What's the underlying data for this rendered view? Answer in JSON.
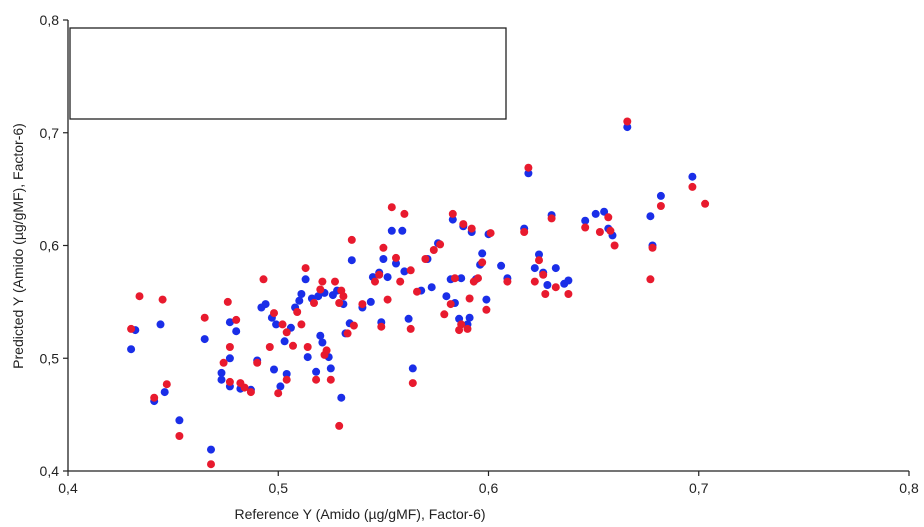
{
  "chart_data": {
    "type": "scatter",
    "xlabel": "Reference Y (Amido (µg/gMF), Factor-6)",
    "ylabel": "Predicted Y (Amido (µg/gMF), Factor-6)",
    "xlim": [
      0.4,
      0.8
    ],
    "ylim": [
      0.4,
      0.8
    ],
    "grid": false,
    "legend": "top-left (empty box)",
    "xticks": [
      "0,4",
      "0,5",
      "0,6",
      "0,7",
      "0,8"
    ],
    "yticks": [
      "0,4",
      "0,5",
      "0,6",
      "0,7",
      "0,8"
    ],
    "xtick_values": [
      0.4,
      0.5,
      0.6,
      0.7,
      0.8
    ],
    "ytick_values": [
      0.4,
      0.5,
      0.6,
      0.7,
      0.8
    ],
    "series": [
      {
        "color": "#1a2ee8",
        "points": [
          [
            0.43,
            0.508
          ],
          [
            0.432,
            0.525
          ],
          [
            0.441,
            0.462
          ],
          [
            0.444,
            0.53
          ],
          [
            0.446,
            0.47
          ],
          [
            0.453,
            0.445
          ],
          [
            0.465,
            0.517
          ],
          [
            0.468,
            0.419
          ],
          [
            0.473,
            0.481
          ],
          [
            0.473,
            0.487
          ],
          [
            0.477,
            0.5
          ],
          [
            0.477,
            0.532
          ],
          [
            0.477,
            0.475
          ],
          [
            0.48,
            0.524
          ],
          [
            0.482,
            0.473
          ],
          [
            0.487,
            0.472
          ],
          [
            0.49,
            0.498
          ],
          [
            0.492,
            0.545
          ],
          [
            0.494,
            0.548
          ],
          [
            0.497,
            0.536
          ],
          [
            0.498,
            0.49
          ],
          [
            0.499,
            0.53
          ],
          [
            0.501,
            0.475
          ],
          [
            0.503,
            0.515
          ],
          [
            0.504,
            0.486
          ],
          [
            0.506,
            0.527
          ],
          [
            0.508,
            0.545
          ],
          [
            0.51,
            0.551
          ],
          [
            0.511,
            0.557
          ],
          [
            0.513,
            0.57
          ],
          [
            0.514,
            0.501
          ],
          [
            0.516,
            0.553
          ],
          [
            0.518,
            0.488
          ],
          [
            0.519,
            0.555
          ],
          [
            0.52,
            0.52
          ],
          [
            0.521,
            0.514
          ],
          [
            0.522,
            0.558
          ],
          [
            0.524,
            0.501
          ],
          [
            0.525,
            0.491
          ],
          [
            0.526,
            0.556
          ],
          [
            0.528,
            0.56
          ],
          [
            0.53,
            0.465
          ],
          [
            0.531,
            0.548
          ],
          [
            0.532,
            0.522
          ],
          [
            0.534,
            0.531
          ],
          [
            0.535,
            0.587
          ],
          [
            0.54,
            0.545
          ],
          [
            0.544,
            0.55
          ],
          [
            0.545,
            0.572
          ],
          [
            0.548,
            0.576
          ],
          [
            0.549,
            0.532
          ],
          [
            0.55,
            0.588
          ],
          [
            0.552,
            0.572
          ],
          [
            0.554,
            0.613
          ],
          [
            0.556,
            0.584
          ],
          [
            0.559,
            0.613
          ],
          [
            0.56,
            0.577
          ],
          [
            0.562,
            0.535
          ],
          [
            0.564,
            0.491
          ],
          [
            0.568,
            0.56
          ],
          [
            0.571,
            0.588
          ],
          [
            0.573,
            0.563
          ],
          [
            0.576,
            0.602
          ],
          [
            0.58,
            0.555
          ],
          [
            0.582,
            0.57
          ],
          [
            0.583,
            0.623
          ],
          [
            0.584,
            0.549
          ],
          [
            0.586,
            0.535
          ],
          [
            0.587,
            0.571
          ],
          [
            0.588,
            0.617
          ],
          [
            0.59,
            0.53
          ],
          [
            0.591,
            0.536
          ],
          [
            0.592,
            0.612
          ],
          [
            0.594,
            0.57
          ],
          [
            0.596,
            0.583
          ],
          [
            0.597,
            0.593
          ],
          [
            0.599,
            0.552
          ],
          [
            0.6,
            0.61
          ],
          [
            0.606,
            0.582
          ],
          [
            0.609,
            0.571
          ],
          [
            0.617,
            0.615
          ],
          [
            0.619,
            0.664
          ],
          [
            0.622,
            0.58
          ],
          [
            0.624,
            0.592
          ],
          [
            0.626,
            0.576
          ],
          [
            0.628,
            0.565
          ],
          [
            0.63,
            0.627
          ],
          [
            0.632,
            0.58
          ],
          [
            0.636,
            0.566
          ],
          [
            0.638,
            0.569
          ],
          [
            0.646,
            0.622
          ],
          [
            0.651,
            0.628
          ],
          [
            0.655,
            0.63
          ],
          [
            0.657,
            0.615
          ],
          [
            0.659,
            0.609
          ],
          [
            0.666,
            0.705
          ],
          [
            0.677,
            0.626
          ],
          [
            0.678,
            0.6
          ],
          [
            0.682,
            0.644
          ],
          [
            0.697,
            0.661
          ]
        ]
      },
      {
        "color": "#e81a2e",
        "points": [
          [
            0.43,
            0.526
          ],
          [
            0.434,
            0.555
          ],
          [
            0.441,
            0.465
          ],
          [
            0.445,
            0.552
          ],
          [
            0.447,
            0.477
          ],
          [
            0.453,
            0.431
          ],
          [
            0.465,
            0.536
          ],
          [
            0.468,
            0.406
          ],
          [
            0.474,
            0.496
          ],
          [
            0.476,
            0.55
          ],
          [
            0.477,
            0.479
          ],
          [
            0.477,
            0.51
          ],
          [
            0.48,
            0.534
          ],
          [
            0.482,
            0.478
          ],
          [
            0.484,
            0.474
          ],
          [
            0.487,
            0.47
          ],
          [
            0.49,
            0.496
          ],
          [
            0.493,
            0.57
          ],
          [
            0.496,
            0.51
          ],
          [
            0.498,
            0.54
          ],
          [
            0.5,
            0.469
          ],
          [
            0.502,
            0.53
          ],
          [
            0.504,
            0.523
          ],
          [
            0.504,
            0.481
          ],
          [
            0.507,
            0.511
          ],
          [
            0.509,
            0.541
          ],
          [
            0.511,
            0.53
          ],
          [
            0.513,
            0.58
          ],
          [
            0.514,
            0.51
          ],
          [
            0.517,
            0.549
          ],
          [
            0.518,
            0.481
          ],
          [
            0.52,
            0.561
          ],
          [
            0.521,
            0.568
          ],
          [
            0.522,
            0.503
          ],
          [
            0.523,
            0.507
          ],
          [
            0.525,
            0.481
          ],
          [
            0.527,
            0.568
          ],
          [
            0.529,
            0.549
          ],
          [
            0.529,
            0.44
          ],
          [
            0.53,
            0.56
          ],
          [
            0.531,
            0.555
          ],
          [
            0.533,
            0.522
          ],
          [
            0.535,
            0.605
          ],
          [
            0.536,
            0.529
          ],
          [
            0.54,
            0.548
          ],
          [
            0.546,
            0.568
          ],
          [
            0.548,
            0.574
          ],
          [
            0.549,
            0.528
          ],
          [
            0.55,
            0.598
          ],
          [
            0.552,
            0.552
          ],
          [
            0.554,
            0.634
          ],
          [
            0.556,
            0.589
          ],
          [
            0.558,
            0.568
          ],
          [
            0.56,
            0.628
          ],
          [
            0.563,
            0.578
          ],
          [
            0.563,
            0.526
          ],
          [
            0.564,
            0.478
          ],
          [
            0.566,
            0.559
          ],
          [
            0.57,
            0.588
          ],
          [
            0.574,
            0.596
          ],
          [
            0.577,
            0.601
          ],
          [
            0.579,
            0.539
          ],
          [
            0.582,
            0.548
          ],
          [
            0.583,
            0.628
          ],
          [
            0.584,
            0.571
          ],
          [
            0.586,
            0.525
          ],
          [
            0.587,
            0.53
          ],
          [
            0.588,
            0.619
          ],
          [
            0.59,
            0.526
          ],
          [
            0.591,
            0.553
          ],
          [
            0.592,
            0.615
          ],
          [
            0.593,
            0.568
          ],
          [
            0.595,
            0.571
          ],
          [
            0.597,
            0.585
          ],
          [
            0.599,
            0.543
          ],
          [
            0.601,
            0.611
          ],
          [
            0.609,
            0.568
          ],
          [
            0.617,
            0.612
          ],
          [
            0.619,
            0.669
          ],
          [
            0.622,
            0.568
          ],
          [
            0.624,
            0.587
          ],
          [
            0.626,
            0.574
          ],
          [
            0.627,
            0.557
          ],
          [
            0.63,
            0.624
          ],
          [
            0.632,
            0.563
          ],
          [
            0.638,
            0.557
          ],
          [
            0.646,
            0.616
          ],
          [
            0.653,
            0.612
          ],
          [
            0.657,
            0.625
          ],
          [
            0.658,
            0.613
          ],
          [
            0.66,
            0.6
          ],
          [
            0.666,
            0.71
          ],
          [
            0.677,
            0.57
          ],
          [
            0.678,
            0.598
          ],
          [
            0.682,
            0.635
          ],
          [
            0.697,
            0.652
          ],
          [
            0.703,
            0.637
          ]
        ]
      }
    ]
  }
}
